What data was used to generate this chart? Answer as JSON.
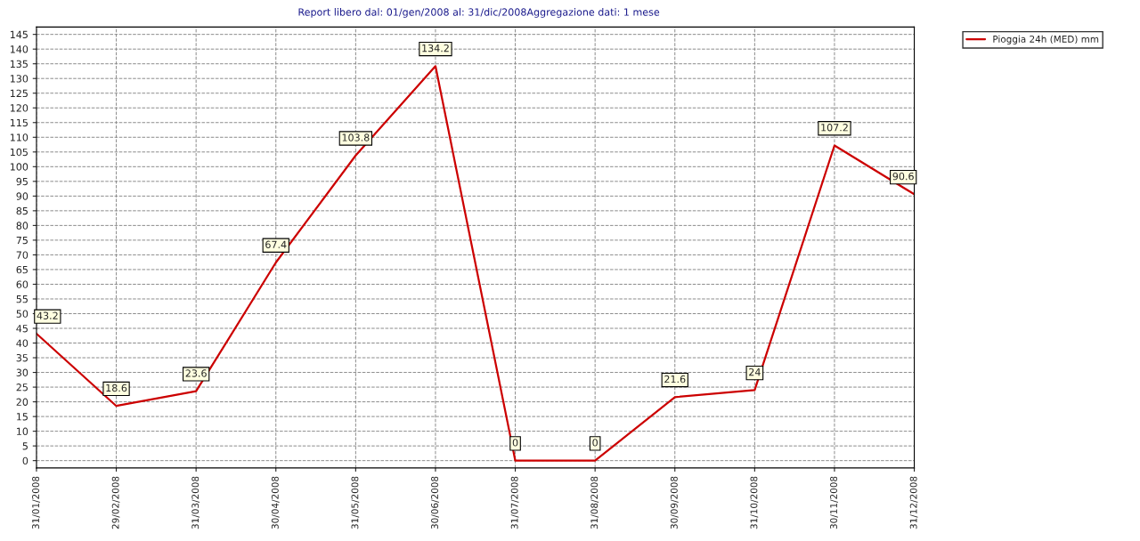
{
  "chart_data": {
    "type": "line",
    "title": "Report libero dal: 01/gen/2008 al: 31/dic/2008Aggregazione dati: 1 mese",
    "categories": [
      "31/01/2008",
      "29/02/2008",
      "31/03/2008",
      "30/04/2008",
      "31/05/2008",
      "30/06/2008",
      "31/07/2008",
      "31/08/2008",
      "30/09/2008",
      "31/10/2008",
      "30/11/2008",
      "31/12/2008"
    ],
    "series": [
      {
        "name": "Pioggia 24h (MED) mm",
        "color": "#cc0000",
        "values": [
          43.2,
          18.6,
          23.6,
          67.4,
          103.8,
          134.2,
          0,
          0,
          21.6,
          24,
          107.2,
          90.6
        ]
      }
    ],
    "ylim": [
      -2.5,
      147.5
    ],
    "yticks": [
      0,
      5,
      10,
      15,
      20,
      25,
      30,
      35,
      40,
      45,
      50,
      55,
      60,
      65,
      70,
      75,
      80,
      85,
      90,
      95,
      100,
      105,
      110,
      115,
      120,
      125,
      130,
      135,
      140,
      145
    ],
    "grid": true,
    "legend": "top right",
    "data_labels": true,
    "marker": "none",
    "line_style": "solid"
  }
}
